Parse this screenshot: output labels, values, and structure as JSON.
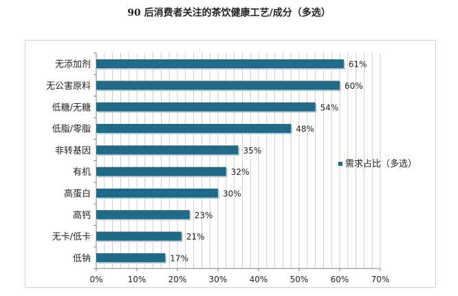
{
  "chart_data": {
    "type": "bar",
    "orientation": "horizontal",
    "title": "90 后消费者关注的茶饮健康工艺/成分（多选）",
    "categories": [
      "无添加剂",
      "无公害原料",
      "低糖/无糖",
      "低脂/零脂",
      "非转基因",
      "有机",
      "高蛋白",
      "高钙",
      "无卡/低卡",
      "低钠"
    ],
    "series": [
      {
        "name": "需求占比（多选）",
        "values": [
          61,
          60,
          54,
          48,
          35,
          32,
          30,
          23,
          21,
          17
        ]
      }
    ],
    "data_labels": [
      "61%",
      "60%",
      "54%",
      "48%",
      "35%",
      "32%",
      "30%",
      "23%",
      "21%",
      "17%"
    ],
    "x_ticks": [
      "0%",
      "10%",
      "20%",
      "30%",
      "40%",
      "50%",
      "60%",
      "70%"
    ],
    "xlim": [
      0,
      70
    ],
    "grid": "vertical",
    "legend_position": "right",
    "colors": {
      "bar": "#1f6a87",
      "bar_shadow": "#c9c9c9",
      "grid": "#bfbfbf",
      "axis": "#7f7f7f",
      "text": "#222222"
    }
  }
}
